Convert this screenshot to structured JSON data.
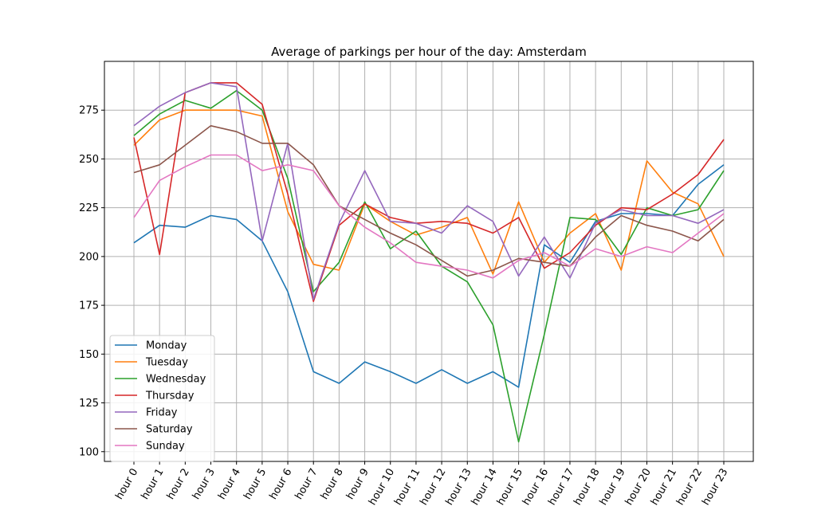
{
  "chart_data": {
    "type": "line",
    "title": "Average of parkings per hour of the day: Amsterdam",
    "xlabel": "",
    "ylabel": "",
    "categories": [
      "hour 0",
      "hour 1",
      "hour 2",
      "hour 3",
      "hour 4",
      "hour 5",
      "hour 6",
      "hour 7",
      "hour 8",
      "hour 9",
      "hour 10",
      "hour 11",
      "hour 12",
      "hour 13",
      "hour 14",
      "hour 15",
      "hour 16",
      "hour 17",
      "hour 18",
      "hour 19",
      "hour 20",
      "hour 21",
      "hour 22",
      "hour 23"
    ],
    "ylim": [
      95,
      300
    ],
    "yticks": [
      100,
      125,
      150,
      175,
      200,
      225,
      250,
      275
    ],
    "grid": true,
    "legend_position": "lower-left",
    "series": [
      {
        "name": "Monday",
        "color": "#1f77b4",
        "values": [
          207,
          216,
          215,
          221,
          219,
          208,
          182,
          141,
          135,
          146,
          141,
          135,
          142,
          135,
          141,
          133,
          206,
          197,
          218,
          222,
          222,
          221,
          237,
          247
        ]
      },
      {
        "name": "Tuesday",
        "color": "#ff7f0e",
        "values": [
          257,
          270,
          275,
          275,
          275,
          272,
          223,
          196,
          193,
          227,
          218,
          211,
          215,
          220,
          191,
          228,
          197,
          212,
          222,
          193,
          249,
          233,
          227,
          200
        ]
      },
      {
        "name": "Wednesday",
        "color": "#2ca02c",
        "values": [
          262,
          273,
          280,
          276,
          285,
          275,
          240,
          182,
          197,
          228,
          204,
          213,
          195,
          187,
          165,
          105,
          160,
          220,
          219,
          201,
          225,
          221,
          224,
          244
        ]
      },
      {
        "name": "Thursday",
        "color": "#d62728",
        "values": [
          261,
          201,
          284,
          289,
          289,
          278,
          232,
          177,
          216,
          227,
          220,
          217,
          218,
          217,
          212,
          220,
          194,
          202,
          216,
          225,
          224,
          232,
          242,
          260
        ]
      },
      {
        "name": "Friday",
        "color": "#9467bd",
        "values": [
          267,
          277,
          284,
          289,
          287,
          208,
          258,
          178,
          217,
          244,
          218,
          217,
          212,
          226,
          218,
          190,
          210,
          189,
          217,
          224,
          221,
          221,
          217,
          224
        ]
      },
      {
        "name": "Saturday",
        "color": "#8c564b",
        "values": [
          243,
          247,
          257,
          267,
          264,
          258,
          258,
          247,
          226,
          219,
          212,
          206,
          198,
          190,
          193,
          199,
          197,
          195,
          210,
          221,
          216,
          213,
          208,
          219
        ]
      },
      {
        "name": "Sunday",
        "color": "#e377c2",
        "values": [
          220,
          239,
          246,
          252,
          252,
          244,
          247,
          244,
          226,
          215,
          207,
          197,
          195,
          193,
          189,
          198,
          202,
          195,
          204,
          200,
          205,
          202,
          212,
          222
        ]
      }
    ]
  }
}
